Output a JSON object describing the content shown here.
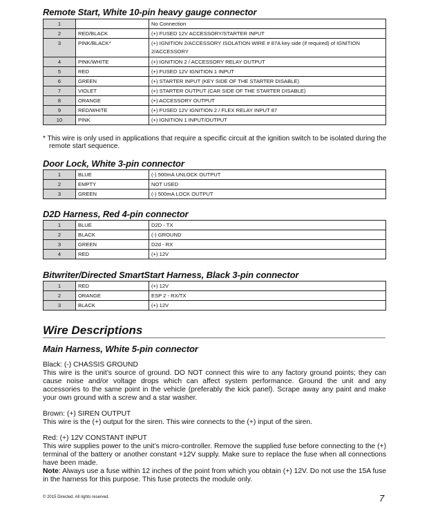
{
  "sections": [
    {
      "title": "Remote Start, White 10-pin heavy gauge connector",
      "rows": [
        [
          "1",
          "",
          "No Connection"
        ],
        [
          "2",
          "RED/BLACK",
          "(+) FUSED 12V ACCESSORY/STARTER INPUT"
        ],
        [
          "3",
          "PINK/BLACK*",
          "(+) IGNITION 2/ACCESSORY ISOLATION WIRE # 87A key side (if required) of IGNITION 2/ACCESSORY"
        ],
        [
          "4",
          "PINK/WHITE",
          "(+) IGNITION 2 / ACCESSORY RELAY OUTPUT"
        ],
        [
          "5",
          "RED",
          "(+) FUSED 12V IGNITION 1 INPUT"
        ],
        [
          "6",
          "GREEN",
          "(+) STARTER INPUT (KEY SIDE OF THE STARTER DISABLE)"
        ],
        [
          "7",
          "VIOLET",
          "(+) STARTER OUTPUT  (CAR SIDE OF THE STARTER DISABLE)"
        ],
        [
          "8",
          "ORANGE",
          "(+) ACCESSORY OUTPUT"
        ],
        [
          "9",
          "RED/WHITE",
          "(+) FUSED 12V IGNITION 2 /  FLEX RELAY INPUT 87"
        ],
        [
          "10",
          "PINK",
          "(+) IGNITION 1 INPUT/OUTPUT"
        ]
      ],
      "footnote": "* This wire is only used in applications that require a specific circuit at the ignition switch to be isolated during the remote start sequence."
    },
    {
      "title": "Door Lock, White 3-pin connector",
      "rows": [
        [
          "1",
          "BLUE",
          "(-) 500mA UNLOCK OUTPUT"
        ],
        [
          "2",
          "EMPTY",
          "NOT USED"
        ],
        [
          "3",
          "GREEN",
          "(-) 500mA LOCK OUTPUT"
        ]
      ]
    },
    {
      "title": "D2D Harness, Red 4-pin connector",
      "rows": [
        [
          "1",
          "BLUE",
          "D2D - TX"
        ],
        [
          "2",
          "BLACK",
          "(-) GROUND"
        ],
        [
          "3",
          "GREEN",
          "D2d - RX"
        ],
        [
          "4",
          "RED",
          "(+) 12V"
        ]
      ]
    },
    {
      "title": "Bitwriter/Directed SmartStart Harness, Black 3-pin connector",
      "rows": [
        [
          "1",
          "RED",
          "(+) 12V"
        ],
        [
          "2",
          "ORANGE",
          "ESP 2 - RX/TX"
        ],
        [
          "3",
          "BLACK",
          "(+) 12V"
        ]
      ]
    }
  ],
  "wire_descriptions": {
    "title": "Wire Descriptions",
    "subtitle": "Main Harness, White 5-pin connector",
    "entries": [
      {
        "heading": "Black: (-) CHASSIS GROUND",
        "text": "This wire is the unit’s source of ground. DO NOT connect this wire to any factory ground points; they can cause noise and/or voltage drops which can affect system performance. Ground the unit and any accessories to the same point in the vehicle (preferably the kick panel). Scrape away any paint and make your own ground with a screw and a star washer."
      },
      {
        "heading": "Brown: (+) SIREN OUTPUT",
        "text": "This wire is the (+) output for the siren. This wire connects to the (+) input of the siren."
      },
      {
        "heading": "Red: (+) 12V CONSTANT INPUT",
        "text": "This wire supplies power to the unit’s micro-controller. Remove the supplied fuse before connecting to the (+) terminal of the battery or another constant +12V supply. Make sure to replace the fuse when all connections have been made.",
        "note_label": "Note",
        "note": ": Always use a fuse within 12 inches of the point from which you obtain (+) 12V. Do not use the 15A fuse in the harness for this purpose. This fuse protects the module only."
      }
    ]
  },
  "footer": {
    "copyright": "© 2015 Directed. All rights reserved.",
    "page_number": "7"
  }
}
